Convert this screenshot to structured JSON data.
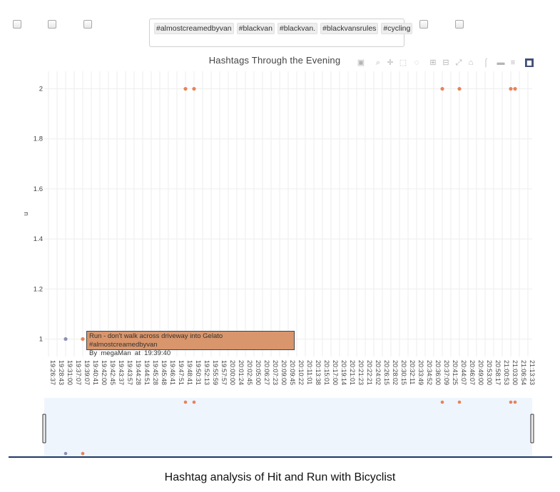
{
  "filter_checkboxes": [
    {
      "checked": false
    },
    {
      "checked": false
    },
    {
      "checked": false
    },
    {
      "checked": false
    },
    {
      "checked": false
    }
  ],
  "hashtag_selector": {
    "selected": [
      "#almostcreamedbyvan",
      "#blackvan",
      "#blackvan.",
      "#blackvansrules",
      "#cycling"
    ]
  },
  "modebar": {
    "icons": [
      "camera-icon",
      "zoom-icon",
      "pan-icon",
      "box-select-icon",
      "lasso-icon",
      "zoom-in-icon",
      "zoom-out-icon",
      "autoscale-icon",
      "reset-axes-icon",
      "spike-lines-icon",
      "show-closest-icon",
      "compare-icon",
      "plotly-logo-icon"
    ],
    "icon_color": "#b5b5b5",
    "logo_color": "#3f4f75"
  },
  "chart_data": {
    "type": "scatter",
    "title": "Hashtags Through the Evening",
    "xlabel": "",
    "ylabel": "n",
    "ylim": [
      0.93,
      2.07
    ],
    "y_ticks": [
      "1",
      "1.2",
      "1.4",
      "1.6",
      "1.8",
      "2"
    ],
    "x_ticks": [
      "19:26:37",
      "19:28:43",
      "19:31:00",
      "19:37:07",
      "19:39:07",
      "19:40:41",
      "19:42:00",
      "19:42:45",
      "19:43:37",
      "19:43:57",
      "19:44:28",
      "19:44:51",
      "19:45:28",
      "19:45:48",
      "19:46:41",
      "19:47:51",
      "19:48:41",
      "19:50:31",
      "19:52:13",
      "19:55:59",
      "19:57:57",
      "20:00:00",
      "20:01:24",
      "20:02:45",
      "20:05:00",
      "20:06:27",
      "20:07:23",
      "20:09:00",
      "20:09:45",
      "20:10:22",
      "20:11:01",
      "20:13:38",
      "20:15:01",
      "20:17:00",
      "20:19:14",
      "20:21:01",
      "20:21:23",
      "20:22:21",
      "20:24:02",
      "20:26:15",
      "20:28:02",
      "20:30:15",
      "20:32:11",
      "20:33:49",
      "20:34:52",
      "20:36:00",
      "20:37:09",
      "20:41:25",
      "20:44:07",
      "20:46:07",
      "20:49:00",
      "20:53:00",
      "20:58:17",
      "21:00:53",
      "21:03:00",
      "21:06:54",
      "21:13:33"
    ],
    "series": [
      {
        "color": "#8c8fb3",
        "points": [
          {
            "x_index": 2,
            "y": 1
          }
        ]
      },
      {
        "color": "#e8825a",
        "points": [
          {
            "x_index": 4,
            "y": 1
          },
          {
            "x_index": 16,
            "y": 2
          },
          {
            "x_index": 17,
            "y": 2
          },
          {
            "x_index": 46,
            "y": 2
          },
          {
            "x_index": 48,
            "y": 2
          },
          {
            "x_index": 54,
            "y": 2
          },
          {
            "x_index": 54.5,
            "y": 2
          }
        ]
      }
    ],
    "grid": true,
    "rangeslider": true,
    "hover": {
      "text": "Run - don't walk across driveway into Gelato #almostcreamedbyvan",
      "by_label": "By",
      "user": "megaMan",
      "at_label": "at",
      "time": "19:39:40"
    }
  },
  "caption": "Hashtag analysis of Hit and Run with Bicyclist"
}
